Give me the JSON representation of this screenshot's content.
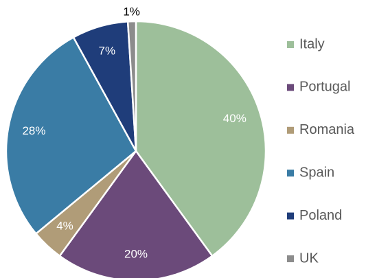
{
  "chart_data": {
    "type": "pie",
    "categories": [
      "Italy",
      "Portugal",
      "Romania",
      "Spain",
      "Poland",
      "UK"
    ],
    "values": [
      40,
      20,
      4,
      28,
      7,
      1
    ],
    "value_labels": [
      "40%",
      "20%",
      "4%",
      "28%",
      "7%",
      "1%"
    ],
    "colors": [
      "#9dbf9a",
      "#6b4a7a",
      "#b09c78",
      "#3a7ca5",
      "#1f3d7a",
      "#8c8c8c"
    ],
    "legend": "right"
  }
}
